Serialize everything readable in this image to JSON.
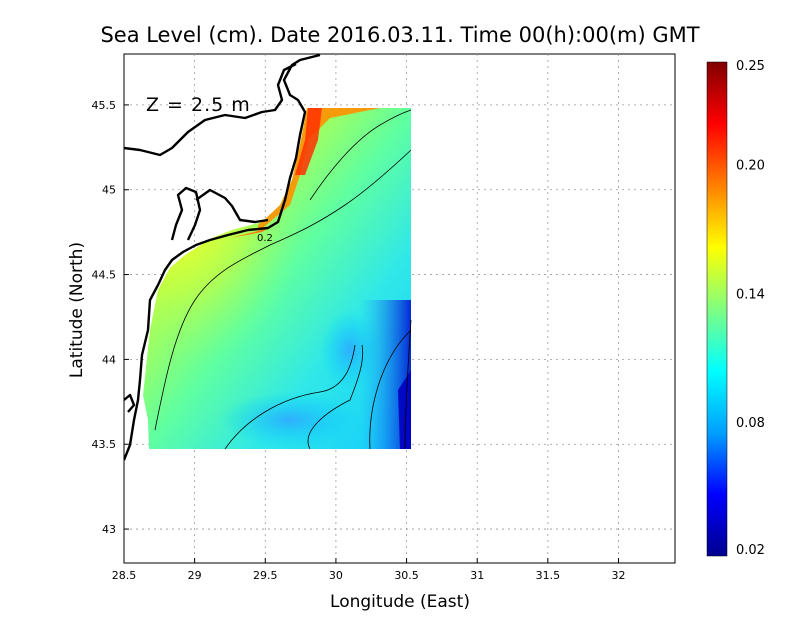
{
  "chart_data": {
    "type": "heatmap",
    "title": "Sea Level (cm). Date 2016.03.11. Time 00(h):00(m) GMT",
    "annotation": "Z = 2.5 m",
    "contour_label": "0.2",
    "xlabel": "Longitude (East)",
    "ylabel": "Latitude (North)",
    "xlim": [
      28.5,
      32.4
    ],
    "ylim": [
      42.8,
      45.8
    ],
    "x_ticks": [
      "28.5",
      "29",
      "29.5",
      "30",
      "30.5",
      "31",
      "31.5",
      "32"
    ],
    "y_ticks": [
      "43",
      "43.5",
      "44",
      "44.5",
      "45",
      "45.5"
    ],
    "grid": true,
    "data_extent": {
      "lon": [
        28.65,
        30.52
      ],
      "lat": [
        43.48,
        45.5
      ]
    },
    "colorbar": {
      "min": 0.02,
      "max": 0.25,
      "ticks": [
        "0.25",
        "0.20",
        "0.14",
        "0.08",
        "0.02"
      ],
      "colors": [
        "#00008f",
        "#0000ff",
        "#00a0ff",
        "#00ffff",
        "#80ff80",
        "#ffff00",
        "#ff8000",
        "#ff0000",
        "#800000"
      ]
    }
  }
}
